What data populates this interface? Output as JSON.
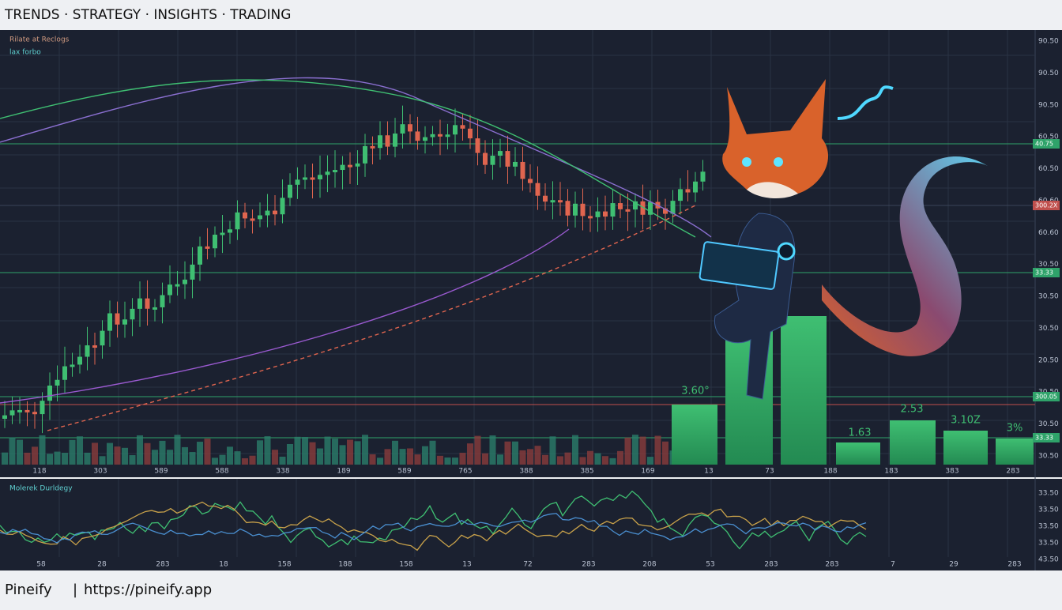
{
  "header": {
    "title": "TRENDS · STRATEGY · INSIGHTS · TRADING"
  },
  "main_panel": {
    "legend": [
      "Rilate at Reclogs",
      "lax forbo"
    ],
    "right_axis": [
      "90.50",
      "90.50",
      "90.50",
      "60.50",
      "60.50",
      "60.60",
      "60.60",
      "30.50",
      "30.50",
      "30.50",
      "20.50",
      "30.50",
      "30.50",
      "30.50"
    ],
    "price_tags": [
      "40.75",
      "300.2X",
      "33.33",
      "300.05",
      "33.33"
    ],
    "x_axis": [
      "118",
      "303",
      "589",
      "588",
      "338",
      "189",
      "589",
      "765",
      "388",
      "385",
      "169",
      "13",
      "73",
      "188",
      "183",
      "383",
      "283"
    ],
    "bar_labels": [
      "3.60°",
      "2.53",
      "1.63",
      "3.10Z",
      "3%"
    ]
  },
  "lower_panel": {
    "legend": "Molerek Durldegy",
    "right_axis": [
      "33.50",
      "33.50",
      "33.50",
      "33.50",
      "43.50"
    ],
    "x_axis": [
      "58",
      "28",
      "283",
      "18",
      "158",
      "188",
      "158",
      "13",
      "72",
      "283",
      "208",
      "53",
      "283",
      "283",
      "7",
      "29",
      "283"
    ]
  },
  "footer": {
    "brand": "Pineify",
    "separator": "|",
    "url": "https://pineify.app"
  }
}
